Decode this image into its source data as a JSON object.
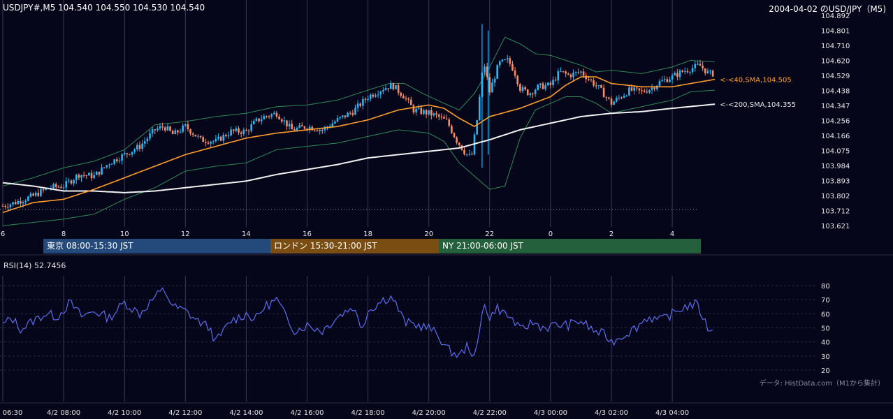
{
  "header": {
    "instrument_ohlc": "USDJPY#,M5 104.540 104.550 104.530 104.540",
    "chart_title": "2004-04-02 のUSD/JPY（M5)"
  },
  "colors": {
    "background": "#06061a",
    "grid": "#3a3a52",
    "candle_up": "#29b6f6",
    "candle_down": "#ff8a65",
    "sma40": "#ff9e2c",
    "sma200": "#f2f2f2",
    "bollinger": "#2e8b57",
    "rsi_line": "#5b6cf0",
    "session_tokyo": "#234a7a",
    "session_london": "#7a4e12",
    "session_ny": "#24603c"
  },
  "sessions": [
    {
      "label": "東京 08:00-15:30 JST",
      "color": "#234a7a"
    },
    {
      "label": "ロンドン 15:30-21:00 JST",
      "color": "#7a4e12"
    },
    {
      "label": "NY 21:00-06:00 JST",
      "color": "#24603c"
    }
  ],
  "rsi_panel": {
    "title": "RSI(14) 52.7456",
    "source_note": "データ: HistData.com（M1から集計）"
  },
  "chart_data": {
    "type": "candlestick",
    "price_ylim": [
      103.621,
      104.892
    ],
    "price_ticks": [
      "104.892",
      "104.801",
      "104.710",
      "104.620",
      "104.529",
      "104.438",
      "104.347",
      "104.256",
      "104.166",
      "104.075",
      "103.984",
      "103.893",
      "103.802",
      "103.712",
      "103.621"
    ],
    "hour_axis": [
      "6",
      "8",
      "10",
      "12",
      "14",
      "16",
      "18",
      "20",
      "22",
      "0",
      "2",
      "4"
    ],
    "datetime_axis": [
      "06:30",
      "4/2 08:00",
      "4/2 10:00",
      "4/2 12:00",
      "4/2 14:00",
      "4/2 16:00",
      "4/2 18:00",
      "4/2 20:00",
      "4/2 22:00",
      "4/3 00:00",
      "4/3 02:00",
      "4/3 04:00"
    ],
    "x_range_hours": [
      6.0,
      29.4
    ],
    "close_anchors": [
      [
        6.0,
        103.74
      ],
      [
        6.4,
        103.76
      ],
      [
        7.0,
        103.8
      ],
      [
        7.5,
        103.85
      ],
      [
        8.0,
        103.86
      ],
      [
        8.5,
        103.93
      ],
      [
        9.0,
        103.92
      ],
      [
        9.5,
        104.0
      ],
      [
        10.0,
        104.05
      ],
      [
        10.5,
        104.1
      ],
      [
        11.0,
        104.2
      ],
      [
        11.3,
        104.22
      ],
      [
        11.6,
        104.17
      ],
      [
        12.0,
        104.22
      ],
      [
        12.5,
        104.14
      ],
      [
        13.0,
        104.13
      ],
      [
        13.5,
        104.19
      ],
      [
        14.0,
        104.19
      ],
      [
        14.3,
        104.25
      ],
      [
        14.6,
        104.28
      ],
      [
        15.0,
        104.3
      ],
      [
        15.5,
        104.2
      ],
      [
        16.0,
        104.22
      ],
      [
        16.5,
        104.2
      ],
      [
        17.0,
        104.26
      ],
      [
        17.5,
        104.31
      ],
      [
        18.0,
        104.4
      ],
      [
        18.5,
        104.45
      ],
      [
        18.8,
        104.47
      ],
      [
        19.2,
        104.4
      ],
      [
        19.5,
        104.32
      ],
      [
        20.0,
        104.3
      ],
      [
        20.3,
        104.28
      ],
      [
        20.6,
        104.25
      ],
      [
        20.9,
        104.14
      ],
      [
        21.2,
        104.06
      ],
      [
        21.4,
        104.03
      ],
      [
        21.6,
        104.28
      ],
      [
        21.8,
        104.62
      ],
      [
        22.0,
        104.43
      ],
      [
        22.3,
        104.6
      ],
      [
        22.6,
        104.62
      ],
      [
        22.8,
        104.56
      ],
      [
        23.0,
        104.45
      ],
      [
        23.3,
        104.42
      ],
      [
        23.6,
        104.46
      ],
      [
        24.0,
        104.47
      ],
      [
        24.3,
        104.55
      ],
      [
        24.6,
        104.53
      ],
      [
        25.0,
        104.55
      ],
      [
        25.3,
        104.5
      ],
      [
        25.6,
        104.45
      ],
      [
        26.0,
        104.36
      ],
      [
        26.3,
        104.4
      ],
      [
        26.6,
        104.44
      ],
      [
        27.0,
        104.43
      ],
      [
        27.3,
        104.45
      ],
      [
        27.6,
        104.49
      ],
      [
        28.0,
        104.52
      ],
      [
        28.3,
        104.55
      ],
      [
        28.6,
        104.57
      ],
      [
        28.9,
        104.59
      ],
      [
        29.2,
        104.54
      ],
      [
        29.4,
        104.54
      ]
    ],
    "sma40_anchors": [
      [
        6.0,
        103.7
      ],
      [
        7.0,
        103.76
      ],
      [
        8.0,
        103.78
      ],
      [
        9.0,
        103.84
      ],
      [
        10.0,
        103.91
      ],
      [
        11.0,
        103.98
      ],
      [
        12.0,
        104.05
      ],
      [
        13.0,
        104.1
      ],
      [
        14.0,
        104.15
      ],
      [
        15.0,
        104.18
      ],
      [
        16.0,
        104.2
      ],
      [
        17.0,
        104.22
      ],
      [
        18.0,
        104.26
      ],
      [
        19.0,
        104.32
      ],
      [
        20.0,
        104.35
      ],
      [
        20.5,
        104.33
      ],
      [
        21.0,
        104.27
      ],
      [
        21.5,
        104.22
      ],
      [
        22.0,
        104.28
      ],
      [
        23.0,
        104.33
      ],
      [
        24.0,
        104.4
      ],
      [
        24.5,
        104.47
      ],
      [
        25.0,
        104.52
      ],
      [
        25.5,
        104.52
      ],
      [
        26.0,
        104.48
      ],
      [
        27.0,
        104.46
      ],
      [
        28.0,
        104.46
      ],
      [
        28.6,
        104.48
      ],
      [
        29.4,
        104.505
      ]
    ],
    "sma200_anchors": [
      [
        6.0,
        103.88
      ],
      [
        7.0,
        103.86
      ],
      [
        8.0,
        103.83
      ],
      [
        9.0,
        103.83
      ],
      [
        10.0,
        103.82
      ],
      [
        11.0,
        103.83
      ],
      [
        12.0,
        103.85
      ],
      [
        13.0,
        103.87
      ],
      [
        14.0,
        103.89
      ],
      [
        15.0,
        103.93
      ],
      [
        16.0,
        103.96
      ],
      [
        17.0,
        103.99
      ],
      [
        18.0,
        104.03
      ],
      [
        19.0,
        104.05
      ],
      [
        20.0,
        104.07
      ],
      [
        21.0,
        104.09
      ],
      [
        22.0,
        104.14
      ],
      [
        23.0,
        104.2
      ],
      [
        24.0,
        104.24
      ],
      [
        25.0,
        104.28
      ],
      [
        26.0,
        104.3
      ],
      [
        27.0,
        104.31
      ],
      [
        28.0,
        104.33
      ],
      [
        29.4,
        104.355
      ]
    ],
    "bb_upper_anchors": [
      [
        6.0,
        103.86
      ],
      [
        7.0,
        103.91
      ],
      [
        8.0,
        103.97
      ],
      [
        9.0,
        104.01
      ],
      [
        10.0,
        104.08
      ],
      [
        11.0,
        104.23
      ],
      [
        12.0,
        104.25
      ],
      [
        13.0,
        104.28
      ],
      [
        14.0,
        104.3
      ],
      [
        15.0,
        104.34
      ],
      [
        16.0,
        104.35
      ],
      [
        17.0,
        104.38
      ],
      [
        18.0,
        104.44
      ],
      [
        18.7,
        104.48
      ],
      [
        19.2,
        104.48
      ],
      [
        19.8,
        104.42
      ],
      [
        20.5,
        104.36
      ],
      [
        21.0,
        104.32
      ],
      [
        21.5,
        104.42
      ],
      [
        22.0,
        104.58
      ],
      [
        22.5,
        104.76
      ],
      [
        23.0,
        104.72
      ],
      [
        23.5,
        104.66
      ],
      [
        24.0,
        104.65
      ],
      [
        24.5,
        104.62
      ],
      [
        25.0,
        104.59
      ],
      [
        25.5,
        104.55
      ],
      [
        26.0,
        104.56
      ],
      [
        27.0,
        104.54
      ],
      [
        28.0,
        104.58
      ],
      [
        28.6,
        104.62
      ],
      [
        29.4,
        104.61
      ]
    ],
    "bb_lower_anchors": [
      [
        6.0,
        103.62
      ],
      [
        7.0,
        103.64
      ],
      [
        8.0,
        103.66
      ],
      [
        9.0,
        103.69
      ],
      [
        10.0,
        103.78
      ],
      [
        11.0,
        103.85
      ],
      [
        12.0,
        103.95
      ],
      [
        13.0,
        103.98
      ],
      [
        14.0,
        104.0
      ],
      [
        15.0,
        104.08
      ],
      [
        16.0,
        104.1
      ],
      [
        17.0,
        104.12
      ],
      [
        18.0,
        104.16
      ],
      [
        19.0,
        104.2
      ],
      [
        20.0,
        104.18
      ],
      [
        20.5,
        104.13
      ],
      [
        21.0,
        104.0
      ],
      [
        21.5,
        103.92
      ],
      [
        22.0,
        103.84
      ],
      [
        22.5,
        103.86
      ],
      [
        23.0,
        104.15
      ],
      [
        23.5,
        104.32
      ],
      [
        24.0,
        104.36
      ],
      [
        24.5,
        104.4
      ],
      [
        25.0,
        104.4
      ],
      [
        25.5,
        104.36
      ],
      [
        26.0,
        104.3
      ],
      [
        27.0,
        104.34
      ],
      [
        28.0,
        104.38
      ],
      [
        28.6,
        104.43
      ],
      [
        29.4,
        104.44
      ]
    ],
    "sma40_label": "<-<40,SMA,104.505",
    "sma200_label": "<-<200,SMA,104.355",
    "rsi": {
      "ylim": [
        20,
        80
      ],
      "ticks": [
        "80",
        "70",
        "60",
        "50",
        "40",
        "30",
        "20"
      ],
      "anchors": [
        [
          6.0,
          52
        ],
        [
          6.3,
          57
        ],
        [
          6.6,
          49
        ],
        [
          7.0,
          55
        ],
        [
          7.4,
          60
        ],
        [
          7.8,
          58
        ],
        [
          8.2,
          68
        ],
        [
          8.6,
          58
        ],
        [
          9.0,
          62
        ],
        [
          9.5,
          57
        ],
        [
          10.0,
          68
        ],
        [
          10.5,
          60
        ],
        [
          11.0,
          72
        ],
        [
          11.3,
          77
        ],
        [
          11.6,
          65
        ],
        [
          12.0,
          62
        ],
        [
          12.4,
          55
        ],
        [
          12.8,
          50
        ],
        [
          13.0,
          40
        ],
        [
          13.5,
          55
        ],
        [
          14.0,
          60
        ],
        [
          14.3,
          56
        ],
        [
          14.6,
          65
        ],
        [
          15.0,
          70
        ],
        [
          15.3,
          58
        ],
        [
          15.6,
          48
        ],
        [
          16.0,
          52
        ],
        [
          16.5,
          48
        ],
        [
          17.0,
          58
        ],
        [
          17.5,
          65
        ],
        [
          17.8,
          50
        ],
        [
          18.0,
          62
        ],
        [
          18.5,
          70
        ],
        [
          18.8,
          72
        ],
        [
          19.2,
          54
        ],
        [
          19.6,
          52
        ],
        [
          20.0,
          50
        ],
        [
          20.3,
          45
        ],
        [
          20.6,
          35
        ],
        [
          21.0,
          30
        ],
        [
          21.3,
          38
        ],
        [
          21.5,
          28
        ],
        [
          21.7,
          50
        ],
        [
          21.8,
          72
        ],
        [
          22.0,
          55
        ],
        [
          22.2,
          65
        ],
        [
          22.5,
          60
        ],
        [
          22.8,
          55
        ],
        [
          23.0,
          48
        ],
        [
          23.4,
          54
        ],
        [
          23.8,
          50
        ],
        [
          24.2,
          52
        ],
        [
          24.6,
          52
        ],
        [
          25.0,
          55
        ],
        [
          25.4,
          48
        ],
        [
          25.8,
          45
        ],
        [
          26.0,
          40
        ],
        [
          26.4,
          45
        ],
        [
          26.8,
          50
        ],
        [
          27.2,
          58
        ],
        [
          27.6,
          55
        ],
        [
          28.0,
          60
        ],
        [
          28.4,
          65
        ],
        [
          28.8,
          67
        ],
        [
          29.0,
          58
        ],
        [
          29.2,
          48
        ],
        [
          29.4,
          52.7
        ]
      ]
    }
  }
}
